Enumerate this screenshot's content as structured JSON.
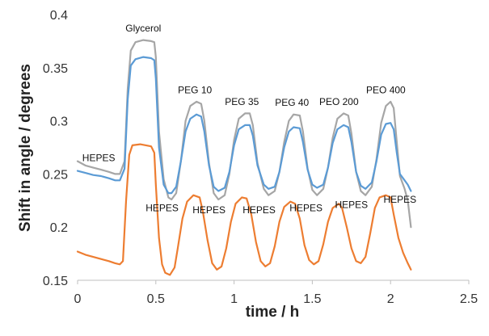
{
  "chart_data": {
    "type": "line",
    "title": "",
    "xlabel": "time / h",
    "ylabel": "Shift in angle / degrees",
    "xlim": [
      0,
      2.5
    ],
    "ylim": [
      0.15,
      0.4
    ],
    "x_ticks": [
      0,
      0.5,
      1,
      1.5,
      2,
      2.5
    ],
    "x_tick_labels": [
      "0",
      "0.5",
      "1",
      "1.5",
      "2",
      "2.5"
    ],
    "y_ticks": [
      0.15,
      0.2,
      0.25,
      0.3,
      0.35,
      0.4
    ],
    "y_tick_labels": [
      "0.15",
      "0.2",
      "0.25",
      "0.3",
      "0.35",
      "0.4"
    ],
    "grid": false,
    "legend": "none",
    "series": [
      {
        "color": "#a6a6a6",
        "points": [
          [
            0,
            0.262
          ],
          [
            0.05,
            0.258
          ],
          [
            0.1,
            0.256
          ],
          [
            0.15,
            0.254
          ],
          [
            0.2,
            0.252
          ],
          [
            0.24,
            0.25
          ],
          [
            0.27,
            0.25
          ],
          [
            0.3,
            0.262
          ],
          [
            0.32,
            0.33
          ],
          [
            0.34,
            0.366
          ],
          [
            0.37,
            0.374
          ],
          [
            0.42,
            0.376
          ],
          [
            0.47,
            0.375
          ],
          [
            0.49,
            0.374
          ],
          [
            0.5,
            0.36
          ],
          [
            0.52,
            0.29
          ],
          [
            0.55,
            0.245
          ],
          [
            0.58,
            0.228
          ],
          [
            0.6,
            0.226
          ],
          [
            0.63,
            0.232
          ],
          [
            0.66,
            0.262
          ],
          [
            0.69,
            0.3
          ],
          [
            0.72,
            0.314
          ],
          [
            0.76,
            0.318
          ],
          [
            0.79,
            0.316
          ],
          [
            0.81,
            0.3
          ],
          [
            0.84,
            0.26
          ],
          [
            0.87,
            0.232
          ],
          [
            0.9,
            0.226
          ],
          [
            0.94,
            0.23
          ],
          [
            0.97,
            0.25
          ],
          [
            1.0,
            0.282
          ],
          [
            1.03,
            0.302
          ],
          [
            1.07,
            0.307
          ],
          [
            1.1,
            0.307
          ],
          [
            1.12,
            0.296
          ],
          [
            1.15,
            0.26
          ],
          [
            1.19,
            0.236
          ],
          [
            1.22,
            0.23
          ],
          [
            1.26,
            0.234
          ],
          [
            1.29,
            0.252
          ],
          [
            1.32,
            0.28
          ],
          [
            1.35,
            0.3
          ],
          [
            1.38,
            0.306
          ],
          [
            1.42,
            0.305
          ],
          [
            1.44,
            0.29
          ],
          [
            1.47,
            0.255
          ],
          [
            1.5,
            0.235
          ],
          [
            1.53,
            0.23
          ],
          [
            1.57,
            0.236
          ],
          [
            1.6,
            0.256
          ],
          [
            1.63,
            0.284
          ],
          [
            1.66,
            0.302
          ],
          [
            1.7,
            0.307
          ],
          [
            1.73,
            0.305
          ],
          [
            1.75,
            0.288
          ],
          [
            1.78,
            0.252
          ],
          [
            1.81,
            0.234
          ],
          [
            1.84,
            0.23
          ],
          [
            1.88,
            0.238
          ],
          [
            1.91,
            0.264
          ],
          [
            1.94,
            0.298
          ],
          [
            1.97,
            0.314
          ],
          [
            2.0,
            0.318
          ],
          [
            2.02,
            0.312
          ],
          [
            2.04,
            0.28
          ],
          [
            2.06,
            0.248
          ],
          [
            2.09,
            0.236
          ],
          [
            2.11,
            0.225
          ],
          [
            2.13,
            0.2
          ]
        ]
      },
      {
        "color": "#5b9bd5",
        "points": [
          [
            0,
            0.253
          ],
          [
            0.05,
            0.251
          ],
          [
            0.1,
            0.249
          ],
          [
            0.15,
            0.248
          ],
          [
            0.2,
            0.246
          ],
          [
            0.24,
            0.244
          ],
          [
            0.27,
            0.244
          ],
          [
            0.3,
            0.255
          ],
          [
            0.32,
            0.32
          ],
          [
            0.34,
            0.352
          ],
          [
            0.37,
            0.358
          ],
          [
            0.42,
            0.36
          ],
          [
            0.47,
            0.359
          ],
          [
            0.49,
            0.357
          ],
          [
            0.5,
            0.34
          ],
          [
            0.52,
            0.275
          ],
          [
            0.55,
            0.24
          ],
          [
            0.58,
            0.232
          ],
          [
            0.6,
            0.232
          ],
          [
            0.63,
            0.238
          ],
          [
            0.66,
            0.262
          ],
          [
            0.69,
            0.29
          ],
          [
            0.72,
            0.302
          ],
          [
            0.76,
            0.306
          ],
          [
            0.79,
            0.304
          ],
          [
            0.81,
            0.29
          ],
          [
            0.84,
            0.258
          ],
          [
            0.87,
            0.238
          ],
          [
            0.9,
            0.234
          ],
          [
            0.94,
            0.237
          ],
          [
            0.97,
            0.252
          ],
          [
            1.0,
            0.277
          ],
          [
            1.03,
            0.292
          ],
          [
            1.07,
            0.296
          ],
          [
            1.1,
            0.296
          ],
          [
            1.12,
            0.286
          ],
          [
            1.15,
            0.258
          ],
          [
            1.19,
            0.24
          ],
          [
            1.22,
            0.236
          ],
          [
            1.26,
            0.238
          ],
          [
            1.29,
            0.252
          ],
          [
            1.32,
            0.275
          ],
          [
            1.35,
            0.29
          ],
          [
            1.38,
            0.294
          ],
          [
            1.42,
            0.293
          ],
          [
            1.44,
            0.28
          ],
          [
            1.47,
            0.254
          ],
          [
            1.5,
            0.24
          ],
          [
            1.53,
            0.237
          ],
          [
            1.57,
            0.24
          ],
          [
            1.6,
            0.256
          ],
          [
            1.63,
            0.279
          ],
          [
            1.66,
            0.292
          ],
          [
            1.7,
            0.296
          ],
          [
            1.73,
            0.294
          ],
          [
            1.75,
            0.28
          ],
          [
            1.78,
            0.252
          ],
          [
            1.81,
            0.239
          ],
          [
            1.84,
            0.236
          ],
          [
            1.88,
            0.242
          ],
          [
            1.91,
            0.262
          ],
          [
            1.94,
            0.287
          ],
          [
            1.97,
            0.297
          ],
          [
            2.0,
            0.298
          ],
          [
            2.02,
            0.292
          ],
          [
            2.04,
            0.27
          ],
          [
            2.06,
            0.25
          ],
          [
            2.09,
            0.244
          ],
          [
            2.11,
            0.24
          ],
          [
            2.13,
            0.234
          ]
        ]
      },
      {
        "color": "#ed7d31",
        "points": [
          [
            0,
            0.177
          ],
          [
            0.05,
            0.174
          ],
          [
            0.1,
            0.172
          ],
          [
            0.15,
            0.17
          ],
          [
            0.2,
            0.168
          ],
          [
            0.24,
            0.166
          ],
          [
            0.27,
            0.165
          ],
          [
            0.29,
            0.168
          ],
          [
            0.31,
            0.225
          ],
          [
            0.33,
            0.268
          ],
          [
            0.35,
            0.277
          ],
          [
            0.4,
            0.278
          ],
          [
            0.47,
            0.276
          ],
          [
            0.49,
            0.27
          ],
          [
            0.5,
            0.24
          ],
          [
            0.52,
            0.19
          ],
          [
            0.54,
            0.165
          ],
          [
            0.56,
            0.157
          ],
          [
            0.59,
            0.155
          ],
          [
            0.62,
            0.162
          ],
          [
            0.64,
            0.18
          ],
          [
            0.67,
            0.208
          ],
          [
            0.7,
            0.224
          ],
          [
            0.74,
            0.23
          ],
          [
            0.78,
            0.228
          ],
          [
            0.8,
            0.215
          ],
          [
            0.83,
            0.188
          ],
          [
            0.86,
            0.166
          ],
          [
            0.89,
            0.16
          ],
          [
            0.92,
            0.163
          ],
          [
            0.95,
            0.18
          ],
          [
            0.98,
            0.205
          ],
          [
            1.01,
            0.222
          ],
          [
            1.05,
            0.228
          ],
          [
            1.08,
            0.227
          ],
          [
            1.11,
            0.212
          ],
          [
            1.14,
            0.186
          ],
          [
            1.17,
            0.168
          ],
          [
            1.2,
            0.163
          ],
          [
            1.23,
            0.166
          ],
          [
            1.26,
            0.182
          ],
          [
            1.29,
            0.205
          ],
          [
            1.32,
            0.219
          ],
          [
            1.36,
            0.224
          ],
          [
            1.39,
            0.222
          ],
          [
            1.42,
            0.208
          ],
          [
            1.45,
            0.183
          ],
          [
            1.48,
            0.169
          ],
          [
            1.51,
            0.165
          ],
          [
            1.54,
            0.168
          ],
          [
            1.57,
            0.184
          ],
          [
            1.6,
            0.205
          ],
          [
            1.63,
            0.218
          ],
          [
            1.67,
            0.222
          ],
          [
            1.69,
            0.218
          ],
          [
            1.72,
            0.2
          ],
          [
            1.75,
            0.18
          ],
          [
            1.78,
            0.168
          ],
          [
            1.81,
            0.166
          ],
          [
            1.84,
            0.172
          ],
          [
            1.87,
            0.194
          ],
          [
            1.9,
            0.218
          ],
          [
            1.93,
            0.228
          ],
          [
            1.97,
            0.23
          ],
          [
            2.0,
            0.228
          ],
          [
            2.02,
            0.212
          ],
          [
            2.05,
            0.19
          ],
          [
            2.08,
            0.176
          ],
          [
            2.11,
            0.166
          ],
          [
            2.13,
            0.16
          ]
        ]
      }
    ],
    "annotations": [
      {
        "text": "Glycerol",
        "x": 0.42,
        "y": 0.384
      },
      {
        "text": "HEPES",
        "x": 0.03,
        "y": 0.262
      },
      {
        "text": "PEG 10",
        "x": 0.75,
        "y": 0.326
      },
      {
        "text": "PEG 35",
        "x": 1.05,
        "y": 0.315
      },
      {
        "text": "PEG 40",
        "x": 1.37,
        "y": 0.314
      },
      {
        "text": "PEO 200",
        "x": 1.67,
        "y": 0.315
      },
      {
        "text": "PEO 400",
        "x": 1.97,
        "y": 0.326
      },
      {
        "text": "HEPES",
        "x": 0.54,
        "y": 0.215
      },
      {
        "text": "HEPES",
        "x": 0.84,
        "y": 0.213
      },
      {
        "text": "HEPES",
        "x": 1.16,
        "y": 0.213
      },
      {
        "text": "HEPES",
        "x": 1.46,
        "y": 0.215
      },
      {
        "text": "HEPES",
        "x": 1.75,
        "y": 0.218
      },
      {
        "text": "HEPES",
        "x": 2.06,
        "y": 0.223
      }
    ]
  }
}
